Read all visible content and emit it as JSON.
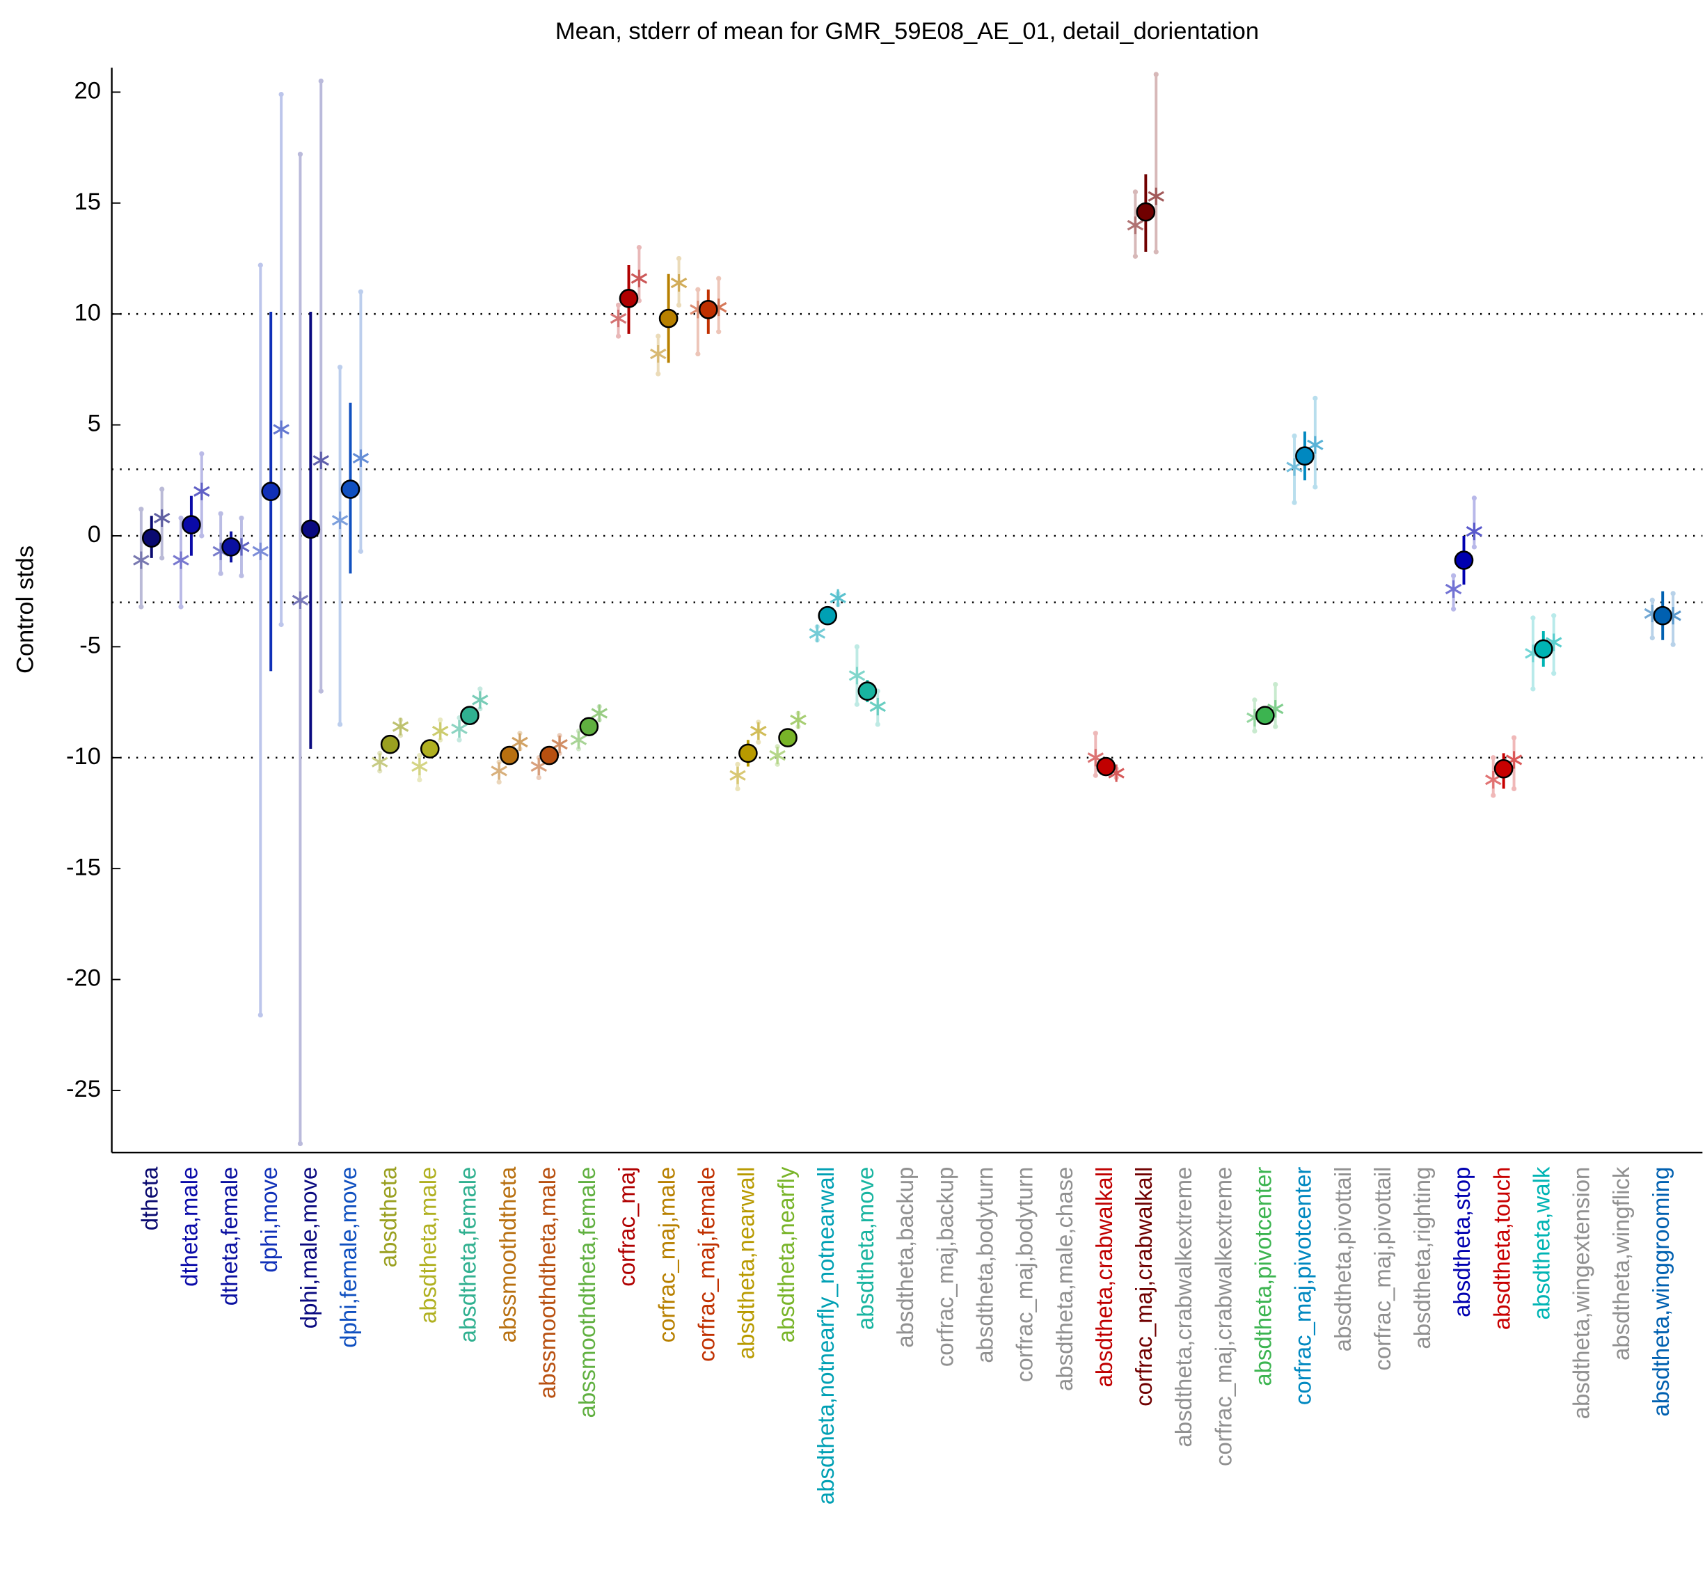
{
  "chart_data": {
    "type": "errorbar",
    "title": "Mean, stderr of mean for GMR_59E08_AE_01, detail_dorientation",
    "y_label": "Control stds",
    "ylim": [
      -27.8,
      21.1
    ],
    "yticks": [
      -25,
      -20,
      -15,
      -10,
      -5,
      0,
      5,
      10,
      15,
      20
    ],
    "reference_lines": [
      10,
      3,
      0,
      -3,
      -10
    ],
    "categories": [
      "dtheta",
      "dtheta,male",
      "dtheta,female",
      "dphi,move",
      "dphi,male,move",
      "dphi,female,move",
      "absdtheta",
      "absdtheta,male",
      "absdtheta,female",
      "abssmoothdtheta",
      "abssmoothdtheta,male",
      "abssmoothdtheta,female",
      "corfrac_maj",
      "corfrac_maj,male",
      "corfrac_maj,female",
      "absdtheta,nearwall",
      "absdtheta,nearfly",
      "absdtheta,notnearfly_notnearwall",
      "absdtheta,move",
      "absdtheta,backup",
      "corfrac_maj,backup",
      "absdtheta,bodyturn",
      "corfrac_maj,bodyturn",
      "absdtheta,male,chase",
      "absdtheta,crabwalkall",
      "corfrac_maj,crabwalkall",
      "absdtheta,crabwalkextreme",
      "corfrac_maj,crabwalkextreme",
      "absdtheta,pivotcenter",
      "corfrac_maj,pivotcenter",
      "absdtheta,pivottail",
      "corfrac_maj,pivottail",
      "absdtheta,righting",
      "absdtheta,stop",
      "absdtheta,touch",
      "absdtheta,walk",
      "absdtheta,wingextension",
      "absdtheta,wingflick",
      "absdtheta,winggrooming"
    ],
    "colors": [
      "#0a0a70",
      "#0a0aa8",
      "#0a10a0",
      "#1030b8",
      "#0a0a80",
      "#1050c0",
      "#9aa020",
      "#b0b020",
      "#30b090",
      "#b87010",
      "#b85010",
      "#60b040",
      "#b00000",
      "#b88000",
      "#c03000",
      "#b89a00",
      "#78b428",
      "#00a0b4",
      "#18b4a0",
      "#909090",
      "#909090",
      "#909090",
      "#909090",
      "#909090",
      "#c00000",
      "#700000",
      "#909090",
      "#909090",
      "#3cb450",
      "#0088c0",
      "#909090",
      "#909090",
      "#909090",
      "#0000b0",
      "#c80000",
      "#00b4b4",
      "#909090",
      "#909090",
      "#0060b0"
    ],
    "points": [
      {
        "mean": -0.1,
        "low": -1.0,
        "high": 0.9,
        "stars": [
          {
            "value": -1.1,
            "low": -3.2,
            "high": 1.2
          },
          {
            "value": 0.8,
            "low": -1.0,
            "high": 2.1
          }
        ]
      },
      {
        "mean": 0.5,
        "low": -0.9,
        "high": 1.8,
        "stars": [
          {
            "value": -1.1,
            "low": -3.2,
            "high": 0.8
          },
          {
            "value": 2.0,
            "low": 0,
            "high": 3.7
          }
        ]
      },
      {
        "mean": -0.5,
        "low": -1.2,
        "high": 0.2,
        "stars": [
          {
            "value": -0.7,
            "low": -1.7,
            "high": 1.0
          },
          {
            "value": -0.5,
            "low": -1.8,
            "high": 0.8
          }
        ]
      },
      {
        "mean": 2.0,
        "low": -6.1,
        "high": 10.1,
        "stars": [
          {
            "value": -0.7,
            "low": -21.6,
            "high": 12.2
          },
          {
            "value": 4.8,
            "low": -4.0,
            "high": 19.9
          }
        ]
      },
      {
        "mean": 0.3,
        "low": -9.6,
        "high": 10.1,
        "stars": [
          {
            "value": -2.9,
            "low": -27.4,
            "high": 17.2
          },
          {
            "value": 3.4,
            "low": -7.0,
            "high": 20.5
          }
        ]
      },
      {
        "mean": 2.1,
        "low": -1.7,
        "high": 6.0,
        "stars": [
          {
            "value": 0.7,
            "low": -8.5,
            "high": 7.6
          },
          {
            "value": 3.5,
            "low": -0.7,
            "high": 11.0
          }
        ]
      },
      {
        "mean": -9.4,
        "low": -9.6,
        "high": -9.2,
        "stars": [
          {
            "value": -10.2,
            "low": -10.6,
            "high": -9.8
          },
          {
            "value": -8.6,
            "low": -9.0,
            "high": -8.3
          }
        ]
      },
      {
        "mean": -9.6,
        "low": -9.8,
        "high": -9.4,
        "stars": [
          {
            "value": -10.4,
            "low": -11.0,
            "high": -9.9
          },
          {
            "value": -8.8,
            "low": -9.2,
            "high": -8.3
          }
        ]
      },
      {
        "mean": -8.1,
        "low": -8.3,
        "high": -7.9,
        "stars": [
          {
            "value": -8.7,
            "low": -9.2,
            "high": -8.2
          },
          {
            "value": -7.4,
            "low": -7.8,
            "high": -6.9
          }
        ]
      },
      {
        "mean": -9.9,
        "low": -10.1,
        "high": -9.7,
        "stars": [
          {
            "value": -10.6,
            "low": -11.1,
            "high": -10.2
          },
          {
            "value": -9.3,
            "low": -9.6,
            "high": -8.9
          }
        ]
      },
      {
        "mean": -9.9,
        "low": -10.1,
        "high": -9.7,
        "stars": [
          {
            "value": -10.4,
            "low": -10.9,
            "high": -10.0
          },
          {
            "value": -9.4,
            "low": -9.8,
            "high": -9.0
          }
        ]
      },
      {
        "mean": -8.6,
        "low": -8.8,
        "high": -8.4,
        "stars": [
          {
            "value": -9.2,
            "low": -9.6,
            "high": -8.8
          },
          {
            "value": -8.0,
            "low": -8.3,
            "high": -7.7
          }
        ]
      },
      {
        "mean": 10.7,
        "low": 9.1,
        "high": 12.2,
        "stars": [
          {
            "value": 9.8,
            "low": 9.0,
            "high": 10.4
          },
          {
            "value": 11.6,
            "low": 10.6,
            "high": 13.0
          }
        ]
      },
      {
        "mean": 9.8,
        "low": 7.8,
        "high": 11.8,
        "stars": [
          {
            "value": 8.2,
            "low": 7.3,
            "high": 9.0
          },
          {
            "value": 11.4,
            "low": 10.4,
            "high": 12.5
          }
        ]
      },
      {
        "mean": 10.2,
        "low": 9.1,
        "high": 11.1,
        "stars": [
          {
            "value": 10.2,
            "low": 8.2,
            "high": 11.1
          },
          {
            "value": 10.3,
            "low": 9.2,
            "high": 11.6
          }
        ]
      },
      {
        "mean": -9.8,
        "low": -10.4,
        "high": -9.2,
        "stars": [
          {
            "value": -10.8,
            "low": -11.4,
            "high": -10.3
          },
          {
            "value": -8.8,
            "low": -9.3,
            "high": -8.4
          }
        ]
      },
      {
        "mean": -9.1,
        "low": -9.3,
        "high": -8.9,
        "stars": [
          {
            "value": -9.9,
            "low": -10.3,
            "high": -9.5
          },
          {
            "value": -8.3,
            "low": -8.6,
            "high": -8.0
          }
        ]
      },
      {
        "mean": -3.6,
        "low": -3.8,
        "high": -3.4,
        "stars": [
          {
            "value": -4.4,
            "low": -4.7,
            "high": -4.1
          },
          {
            "value": -2.8,
            "low": -3.1,
            "high": -2.6
          }
        ]
      },
      {
        "mean": -7.0,
        "low": -7.5,
        "high": -6.5,
        "stars": [
          {
            "value": -6.3,
            "low": -7.6,
            "high": -5.0
          },
          {
            "value": -7.7,
            "low": -8.5,
            "high": -7.0
          }
        ]
      },
      null,
      null,
      null,
      null,
      null,
      {
        "mean": -10.4,
        "low": -10.6,
        "high": -10.1,
        "stars": [
          {
            "value": -10.0,
            "low": -10.8,
            "high": -8.9
          },
          {
            "value": -10.7,
            "low": -10.9,
            "high": -10.5
          }
        ]
      },
      {
        "mean": 14.6,
        "low": 12.8,
        "high": 16.3,
        "stars": [
          {
            "value": 14.0,
            "low": 12.6,
            "high": 15.5
          },
          {
            "value": 15.3,
            "low": 12.8,
            "high": 20.8
          }
        ]
      },
      null,
      null,
      {
        "mean": -8.1,
        "low": -8.3,
        "high": -7.9,
        "stars": [
          {
            "value": -8.2,
            "low": -8.8,
            "high": -7.4
          },
          {
            "value": -7.8,
            "low": -8.6,
            "high": -6.7
          }
        ]
      },
      {
        "mean": 3.6,
        "low": 2.5,
        "high": 4.7,
        "stars": [
          {
            "value": 3.1,
            "low": 1.5,
            "high": 4.5
          },
          {
            "value": 4.1,
            "low": 2.2,
            "high": 6.2
          }
        ]
      },
      null,
      null,
      null,
      {
        "mean": -1.1,
        "low": -2.2,
        "high": 0,
        "stars": [
          {
            "value": -2.4,
            "low": -3.3,
            "high": -1.8
          },
          {
            "value": 0.2,
            "low": -0.5,
            "high": 1.7
          }
        ]
      },
      {
        "mean": -10.5,
        "low": -11.4,
        "high": -9.8,
        "stars": [
          {
            "value": -11.0,
            "low": -11.7,
            "high": -10.0
          },
          {
            "value": -10.1,
            "low": -11.4,
            "high": -9.1
          }
        ]
      },
      {
        "mean": -5.1,
        "low": -5.9,
        "high": -4.3,
        "stars": [
          {
            "value": -5.3,
            "low": -6.9,
            "high": -3.7
          },
          {
            "value": -4.8,
            "low": -6.2,
            "high": -3.6
          }
        ]
      },
      null,
      null,
      {
        "mean": -3.6,
        "low": -4.7,
        "high": -2.5,
        "stars": [
          {
            "value": -3.5,
            "low": -4.6,
            "high": -2.9
          },
          {
            "value": -3.6,
            "low": -4.9,
            "high": -2.6
          }
        ]
      }
    ]
  }
}
